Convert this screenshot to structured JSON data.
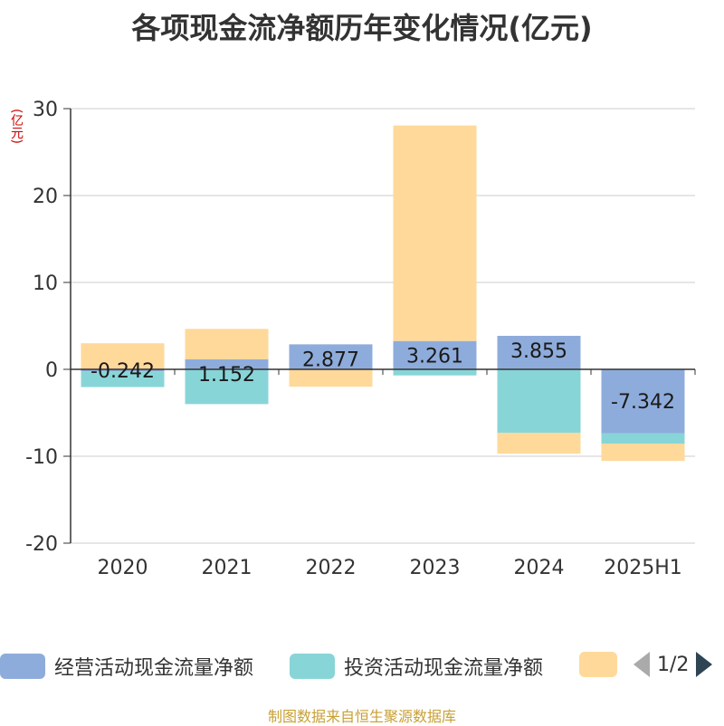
{
  "chart_data": {
    "type": "bar",
    "stacked": true,
    "title": "各项现金流净额历年变化情况(亿元)",
    "ylabel": "(亿元)",
    "ylim": [
      -20,
      30
    ],
    "yticks": [
      "30",
      "20",
      "10",
      "0",
      "-10",
      "-20"
    ],
    "ytick_values": [
      30,
      20,
      10,
      0,
      -10,
      -20
    ],
    "grid": true,
    "legend_position": "bottom",
    "categories": [
      "2020",
      "2021",
      "2022",
      "2023",
      "2024",
      "2025H1"
    ],
    "series": [
      {
        "name": "经营活动现金流量净额",
        "color": "#8eacdb",
        "values": [
          -0.242,
          1.152,
          2.877,
          3.261,
          3.855,
          -7.342
        ],
        "labels": [
          "-0.242",
          "1.152",
          "2.877",
          "3.261",
          "3.855",
          "-7.342"
        ]
      },
      {
        "name": "投资活动现金流量净额",
        "color": "#88d5d8",
        "values": [
          -1.8,
          -4.0,
          0.0,
          -0.7,
          -7.3,
          -1.2
        ],
        "labels": []
      },
      {
        "name": "",
        "color": "#fed99a",
        "values": [
          3.0,
          3.5,
          -2.0,
          24.8,
          -2.4,
          -2.0
        ],
        "labels": []
      }
    ]
  },
  "legend": {
    "item1": "经营活动现金流量净额",
    "item2": "投资活动现金流量净额",
    "pager": "1/2"
  },
  "source": "制图数据来自恒生聚源数据库"
}
